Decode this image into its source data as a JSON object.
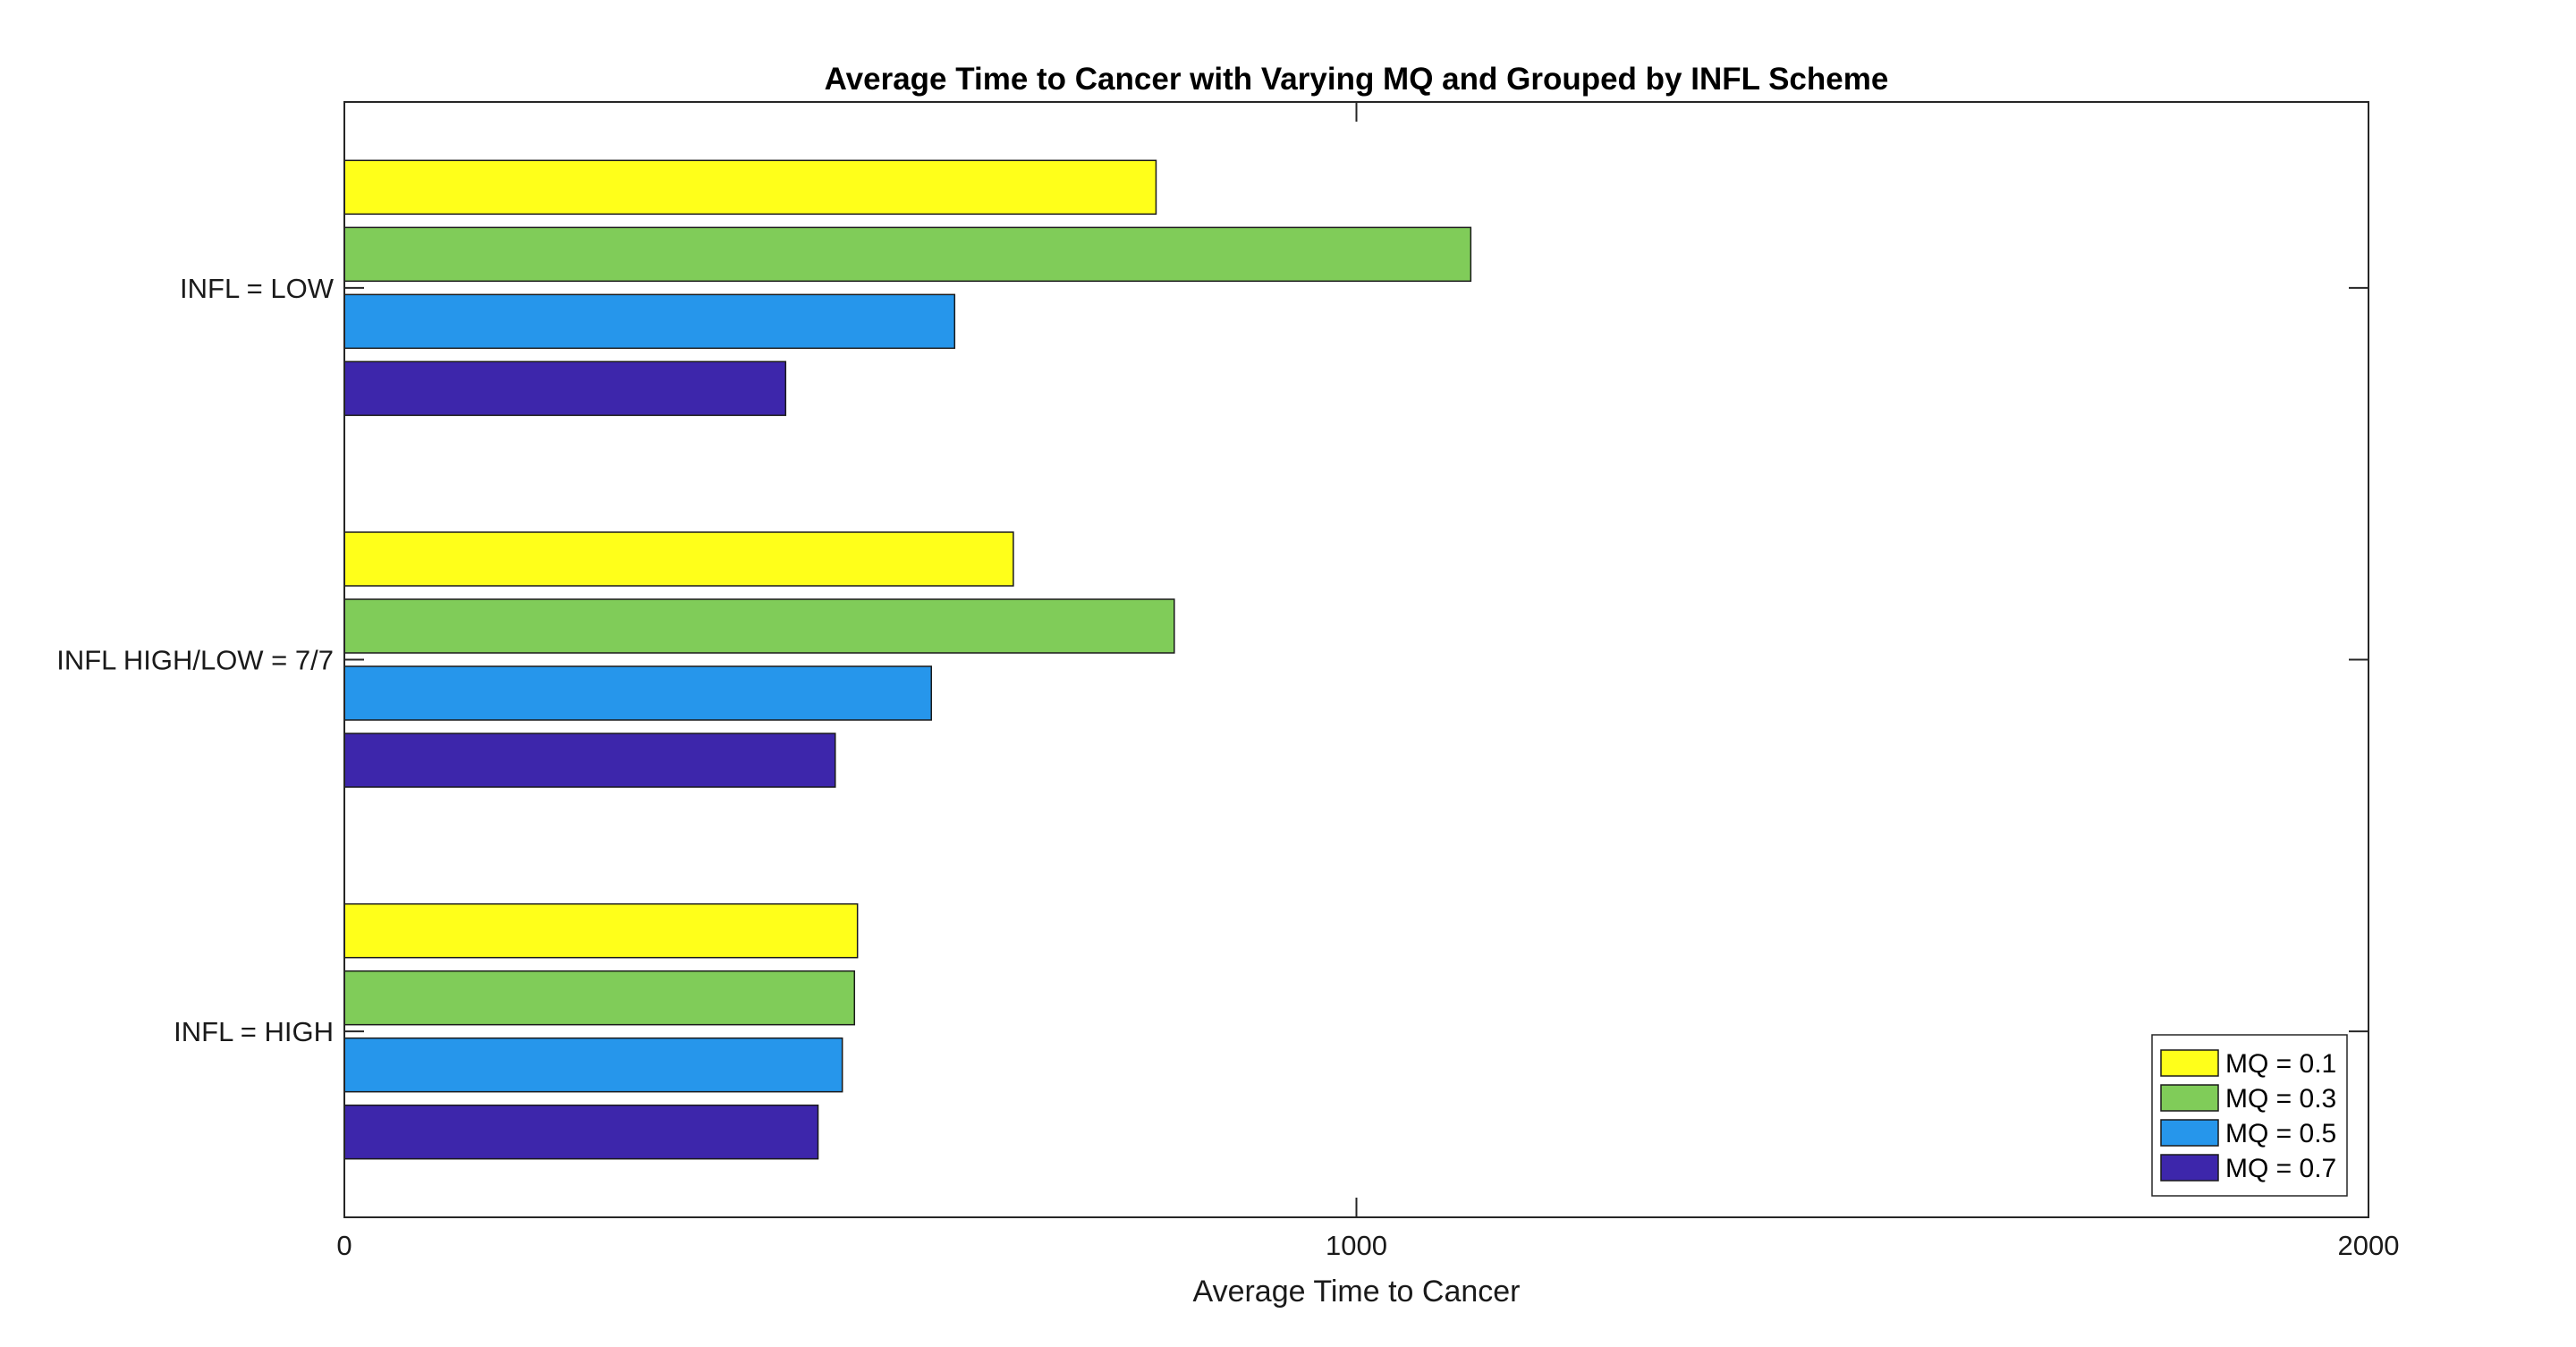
{
  "chart_data": {
    "type": "bar",
    "orientation": "horizontal",
    "title": "Average Time to Cancer with Varying MQ and Grouped by INFL Scheme",
    "xlabel": "Average Time to Cancer",
    "ylabel": "",
    "xlim": [
      0,
      2000
    ],
    "xticks": [
      0,
      1000,
      2000
    ],
    "categories": [
      "INFL = LOW",
      "INFL HIGH/LOW = 7/7",
      "INFL = HIGH"
    ],
    "series": [
      {
        "name": "MQ = 0.1",
        "color": "#ffff1a",
        "values": [
          802,
          661,
          507
        ]
      },
      {
        "name": "MQ = 0.3",
        "color": "#80cc59",
        "values": [
          1113,
          820,
          504
        ]
      },
      {
        "name": "MQ = 0.5",
        "color": "#2696eb",
        "values": [
          603,
          580,
          492
        ]
      },
      {
        "name": "MQ = 0.7",
        "color": "#3d26ab",
        "values": [
          436,
          485,
          468
        ]
      }
    ],
    "grid": false,
    "legend_position": "bottom-right"
  }
}
